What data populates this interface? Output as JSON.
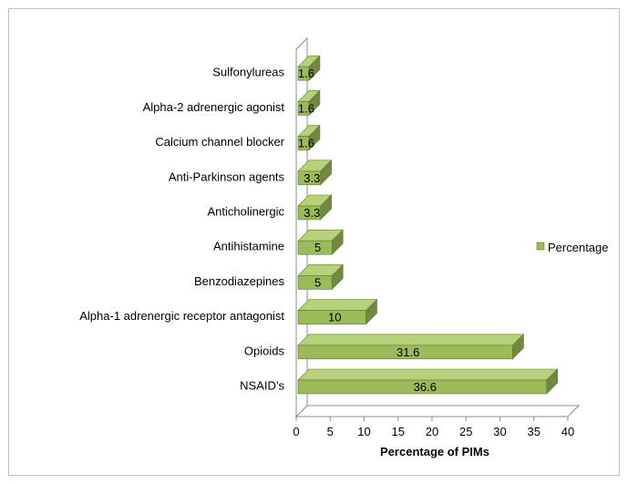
{
  "chart_data": {
    "type": "bar",
    "orientation": "horizontal",
    "style": "3d",
    "categories": [
      "NSAID’s",
      "Opioids",
      "Alpha-1 adrenergic receptor antagonist",
      "Benzodiazepines",
      "Antihistamine",
      "Anticholinergic",
      "Anti-Parkinson agents",
      "Calcium channel blocker",
      "Alpha-2 adrenergic agonist",
      "Sulfonylureas"
    ],
    "series": [
      {
        "name": "Percentage",
        "values": [
          36.6,
          31.6,
          10,
          5,
          5,
          3.3,
          3.3,
          1.6,
          1.6,
          1.6
        ],
        "color": "#9bbb59"
      }
    ],
    "data_labels": [
      "36.6",
      "31.6",
      "10",
      "5",
      "5",
      "3.3",
      "3.3",
      "1.6",
      "1.6",
      "1.6"
    ],
    "xlabel": "Percentage of PIMs",
    "xlim": [
      0,
      40
    ],
    "xticks": [
      "0",
      "5",
      "10",
      "15",
      "20",
      "25",
      "30",
      "35",
      "40"
    ],
    "grid": false,
    "legend": {
      "position": "right",
      "label": "Percentage"
    },
    "colors": {
      "bar_front": "#9bbb59",
      "bar_top": "#b7d17a",
      "bar_side": "#71893f"
    }
  }
}
